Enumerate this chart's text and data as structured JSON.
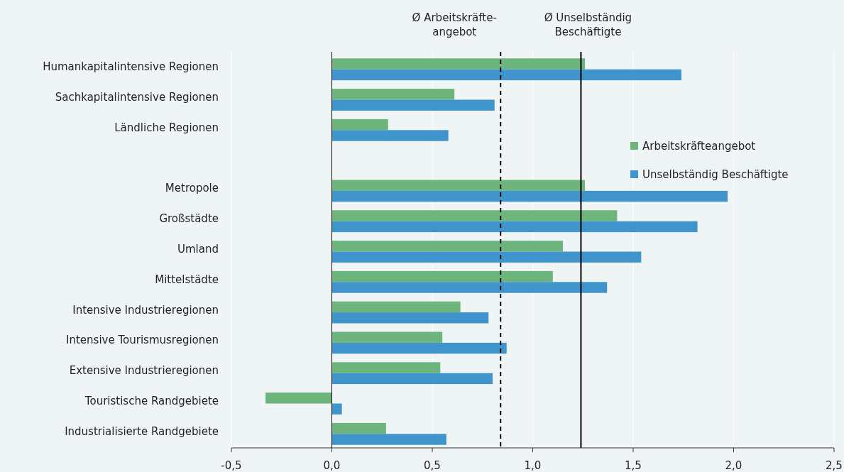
{
  "chart_data": {
    "type": "bar",
    "orientation": "horizontal",
    "categories": [
      "Humankapitalintensive Regionen",
      "Sachkapitalintensive Regionen",
      "Ländliche Regionen",
      null,
      "Metropole",
      "Großstädte",
      "Umland",
      "Mittelstädte",
      "Intensive Industrieregionen",
      "Intensive Tourismusregionen",
      "Extensive Industrieregionen",
      "Touristische Randgebiete",
      "Industrialisierte Randgebiete"
    ],
    "series": [
      {
        "name": "Arbeitskräfteangebot",
        "color": "#6db57c",
        "values": [
          1.26,
          0.61,
          0.28,
          null,
          1.26,
          1.42,
          1.15,
          1.1,
          0.64,
          0.55,
          0.54,
          -0.33,
          0.27
        ]
      },
      {
        "name": "Unselbständig Beschäftigte",
        "color": "#3f94cb",
        "values": [
          1.74,
          0.81,
          0.58,
          null,
          1.97,
          1.82,
          1.54,
          1.37,
          0.78,
          0.87,
          0.8,
          0.05,
          0.57
        ]
      }
    ],
    "xlim": [
      -0.5,
      2.5
    ],
    "xticks": [
      {
        "value": -0.5,
        "label": "-0,5"
      },
      {
        "value": 0,
        "label": "0,0"
      },
      {
        "value": 0.5,
        "label": "0,5"
      },
      {
        "value": 1,
        "label": "1,0"
      },
      {
        "value": 1.5,
        "label": "1,5"
      },
      {
        "value": 2,
        "label": "2,0"
      },
      {
        "value": 2.5,
        "label": "2,5"
      }
    ],
    "ref_lines": [
      {
        "axis": "x",
        "value": 0.84,
        "label": "Ø Arbeitskräfte-\nangebot",
        "line_style": "dashed"
      },
      {
        "axis": "x",
        "value": 1.24,
        "label": "Ø Unselbständig\nBeschäftigte",
        "line_style": "solid"
      }
    ],
    "grid": "x",
    "legend": "right"
  }
}
